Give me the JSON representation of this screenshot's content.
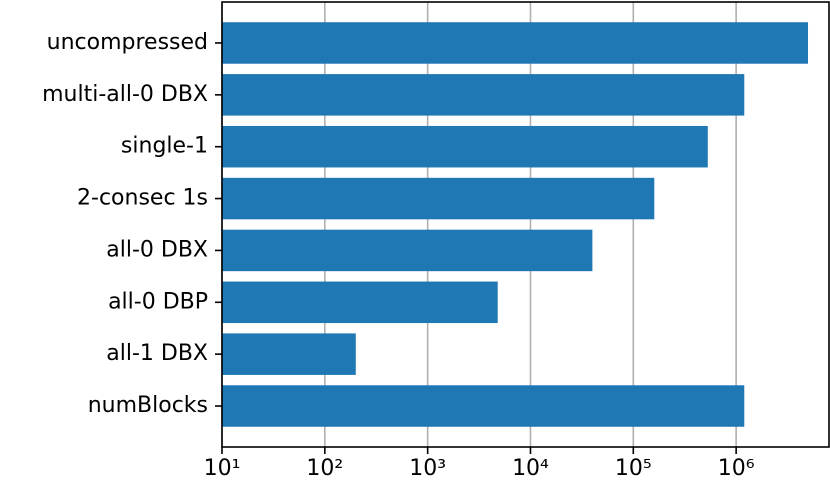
{
  "chart_data": {
    "type": "barh",
    "categories": [
      "uncompressed",
      "multi-all-0 DBX",
      "single-1",
      "2-consec 1s",
      "all-0 DBX",
      "all-0 DBP",
      "all-1 DBX",
      "numBlocks"
    ],
    "values": [
      5000000,
      1200000,
      530000,
      160000,
      40000,
      4800,
      200,
      1200000
    ],
    "color": "#1f77b4",
    "xscale": "log",
    "xlim": [
      10,
      8000000
    ],
    "xticks": [
      {
        "value": 10,
        "label": "10¹"
      },
      {
        "value": 100,
        "label": "10²"
      },
      {
        "value": 1000,
        "label": "10³"
      },
      {
        "value": 10000,
        "label": "10⁴"
      },
      {
        "value": 100000,
        "label": "10⁵"
      },
      {
        "value": 1000000,
        "label": "10⁶"
      }
    ],
    "grid": true
  }
}
